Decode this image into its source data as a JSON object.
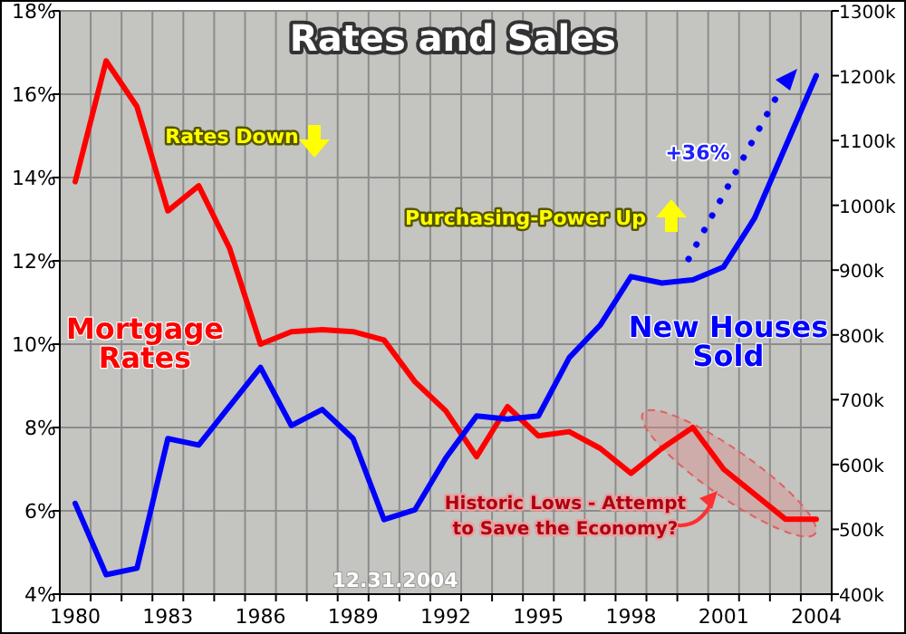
{
  "chart_data": {
    "type": "line",
    "title": "Rates and Sales",
    "categories": [
      "1980",
      null,
      null,
      "1983",
      null,
      null,
      "1986",
      null,
      null,
      "1989",
      null,
      null,
      "1992",
      null,
      null,
      "1995",
      null,
      null,
      "1998",
      null,
      null,
      "2001",
      null,
      null,
      "2004"
    ],
    "series": [
      {
        "name": "Mortgage Rates",
        "color": "#ff0000",
        "values": [
          13.9,
          16.8,
          15.7,
          13.2,
          13.8,
          12.3,
          10.0,
          10.3,
          10.35,
          10.3,
          10.1,
          9.1,
          8.4,
          7.3,
          8.5,
          7.8,
          7.9,
          7.5,
          6.9,
          7.5,
          8.0,
          7.0,
          6.4,
          5.8,
          5.8
        ]
      },
      {
        "name": "New Houses Sold",
        "color": "#0000ff",
        "axis": "y2",
        "values": [
          540,
          430,
          440,
          640,
          630,
          690,
          750,
          660,
          685,
          640,
          515,
          530,
          610,
          675,
          670,
          675,
          765,
          815,
          890,
          880,
          885,
          905,
          980,
          1090,
          1200
        ]
      }
    ],
    "ylim": [
      4,
      18
    ],
    "yticks": [
      {
        "value": 4,
        "label": "4%"
      },
      {
        "value": 6,
        "label": "6%"
      },
      {
        "value": 8,
        "label": "8%"
      },
      {
        "value": 10,
        "label": "10%"
      },
      {
        "value": 12,
        "label": "12%"
      },
      {
        "value": 14,
        "label": "14%"
      },
      {
        "value": 16,
        "label": "16%"
      },
      {
        "value": 18,
        "label": "18%"
      }
    ],
    "y2lim": [
      400,
      1300
    ],
    "y2ticks": [
      {
        "value": 400,
        "label": "400k"
      },
      {
        "value": 500,
        "label": "500k"
      },
      {
        "value": 600,
        "label": "600k"
      },
      {
        "value": 700,
        "label": "700k"
      },
      {
        "value": 800,
        "label": "800k"
      },
      {
        "value": 900,
        "label": "900k"
      },
      {
        "value": 1000,
        "label": "1000k"
      },
      {
        "value": 1100,
        "label": "1100k"
      },
      {
        "value": 1200,
        "label": "1200k"
      },
      {
        "value": 1300,
        "label": "1300k"
      }
    ],
    "grid": true,
    "legend": false,
    "marker": "none",
    "line_style": "solid",
    "annotations": [
      "Rates Down",
      "Purchasing-Power Up",
      "+36%",
      "Historic Lows - Attempt to Save the Economy?",
      "12.31.2004"
    ]
  }
}
